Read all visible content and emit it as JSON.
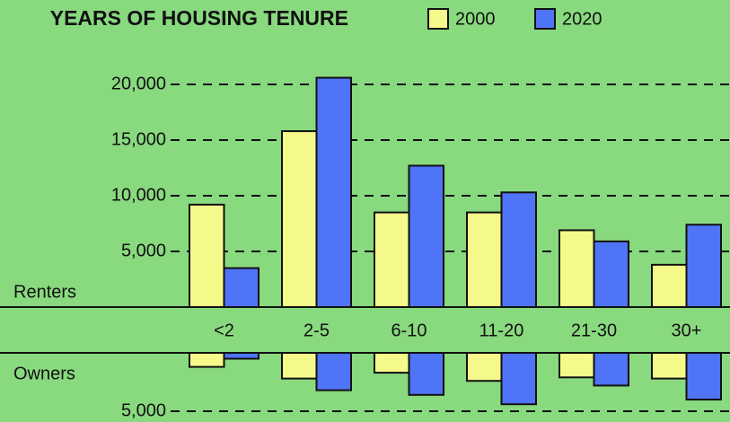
{
  "chart_data": {
    "type": "bar",
    "title": "YEARS OF HOUSING TENURE",
    "categories": [
      "<2",
      "2-5",
      "6-10",
      "11-20",
      "21-30",
      "30+"
    ],
    "legend": [
      {
        "name": "2000",
        "color": "#f5f98a"
      },
      {
        "name": "2020",
        "color": "#4f74f7"
      }
    ],
    "panels": [
      {
        "label": "Renters",
        "direction": "up",
        "ylim": [
          0,
          20000
        ],
        "yticks": [
          {
            "value": 5000,
            "label": "5,000"
          },
          {
            "value": 10000,
            "label": "10,000"
          },
          {
            "value": 15000,
            "label": "15,000"
          },
          {
            "value": 20000,
            "label": "20,000"
          }
        ],
        "values": [
          [
            9200,
            15800,
            8500,
            8500,
            6900,
            3800
          ],
          [
            3500,
            20600,
            12700,
            10300,
            5900,
            7400
          ]
        ]
      },
      {
        "label": "Owners",
        "direction": "down",
        "ylim": [
          0,
          5000
        ],
        "yticks": [
          {
            "value": 5000,
            "label": "5,000"
          }
        ],
        "values": [
          [
            1200,
            2200,
            1700,
            2400,
            2100,
            2200
          ],
          [
            500,
            3200,
            3600,
            4400,
            2800,
            4000
          ]
        ]
      }
    ]
  }
}
